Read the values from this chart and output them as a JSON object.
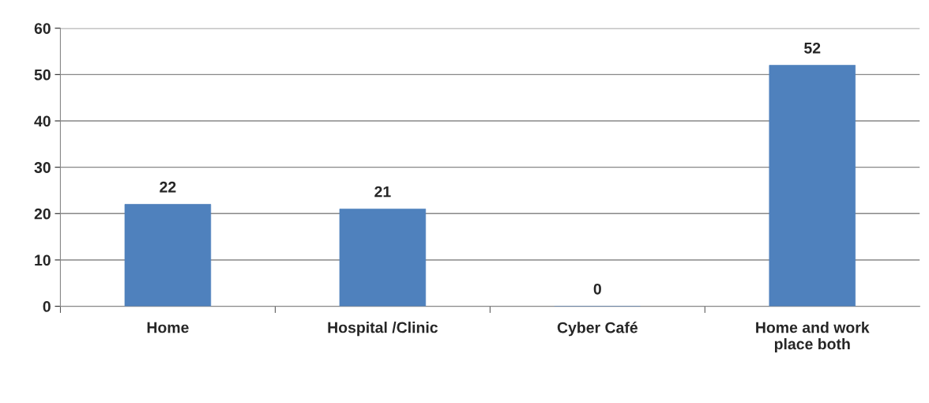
{
  "chart_data": {
    "type": "bar",
    "categories": [
      "Home",
      "Hospital /Clinic",
      "Cyber Café",
      "Home and work\nplace both"
    ],
    "values": [
      22,
      21,
      0,
      52
    ],
    "color": "#4f81bd",
    "ylim": [
      0,
      60
    ],
    "yticks": [
      0,
      10,
      20,
      30,
      40,
      50,
      60
    ],
    "grid": "y",
    "data_labels": true
  }
}
